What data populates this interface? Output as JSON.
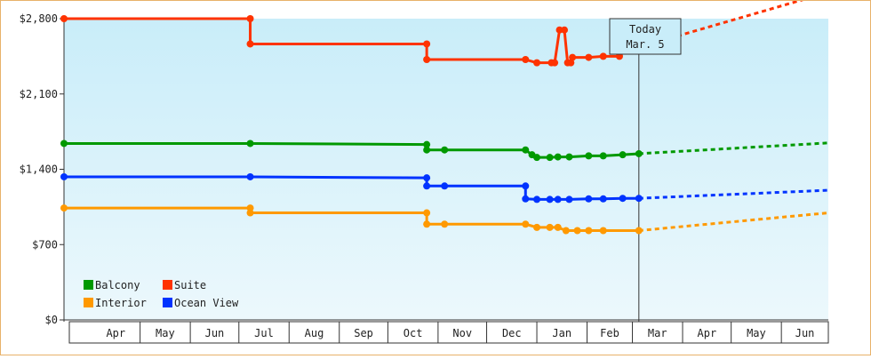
{
  "chart_data": {
    "type": "line",
    "title": "",
    "xlabel": "",
    "ylabel": "",
    "ylim": [
      0,
      2800
    ],
    "y_ticks": [
      {
        "value": 0,
        "label": "$0"
      },
      {
        "value": 700,
        "label": "$700"
      },
      {
        "value": 1400,
        "label": "$1,400"
      },
      {
        "value": 2100,
        "label": "$2,100"
      },
      {
        "value": 2800,
        "label": "$2,800"
      }
    ],
    "x_range": [
      "2014-03-15",
      "2015-06-30"
    ],
    "x_month_labels": [
      {
        "start": "2014-04-01",
        "label": "Apr"
      },
      {
        "start": "2014-05-01",
        "label": "May"
      },
      {
        "start": "2014-06-01",
        "label": "Jun"
      },
      {
        "start": "2014-07-01",
        "label": "Jul"
      },
      {
        "start": "2014-08-01",
        "label": "Aug"
      },
      {
        "start": "2014-09-01",
        "label": "Sep"
      },
      {
        "start": "2014-10-01",
        "label": "Oct"
      },
      {
        "start": "2014-11-01",
        "label": "Nov"
      },
      {
        "start": "2014-12-01",
        "label": "Dec"
      },
      {
        "start": "2015-01-01",
        "label": "Jan"
      },
      {
        "start": "2015-02-01",
        "label": "Feb"
      },
      {
        "start": "2015-03-01",
        "label": "Mar"
      },
      {
        "start": "2015-04-01",
        "label": "Apr"
      },
      {
        "start": "2015-05-01",
        "label": "May"
      },
      {
        "start": "2015-06-01",
        "label": "Jun"
      }
    ],
    "today": {
      "date": "2015-03-05",
      "label_line1": "Today",
      "label_line2": "Mar. 5"
    },
    "legend_placement": "bottom-left",
    "grid": false,
    "background_gradient": [
      "#c9edf9",
      "#ecf8fc"
    ],
    "series": [
      {
        "name": "Suite",
        "color": "#ff3300",
        "points": [
          {
            "x": "2014-03-15",
            "y": 2800
          },
          {
            "x": "2014-07-08",
            "y": 2800
          },
          {
            "x": "2014-07-08",
            "y": 2565
          },
          {
            "x": "2014-10-25",
            "y": 2565
          },
          {
            "x": "2014-10-25",
            "y": 2420
          },
          {
            "x": "2014-12-25",
            "y": 2420
          },
          {
            "x": "2015-01-01",
            "y": 2390
          },
          {
            "x": "2015-01-10",
            "y": 2390
          },
          {
            "x": "2015-01-12",
            "y": 2390
          },
          {
            "x": "2015-01-15",
            "y": 2695
          },
          {
            "x": "2015-01-18",
            "y": 2695
          },
          {
            "x": "2015-01-20",
            "y": 2390
          },
          {
            "x": "2015-01-22",
            "y": 2390
          },
          {
            "x": "2015-01-23",
            "y": 2440
          },
          {
            "x": "2015-02-02",
            "y": 2440
          },
          {
            "x": "2015-02-11",
            "y": 2450
          },
          {
            "x": "2015-02-21",
            "y": 2450
          },
          {
            "x": "2015-02-23",
            "y": 2535
          },
          {
            "x": "2015-03-05",
            "y": 2535
          }
        ],
        "forecast": [
          {
            "x": "2015-03-05",
            "y": 2535
          },
          {
            "x": "2015-06-30",
            "y": 3045
          }
        ]
      },
      {
        "name": "Balcony",
        "color": "#009900",
        "points": [
          {
            "x": "2014-03-15",
            "y": 1640
          },
          {
            "x": "2014-07-08",
            "y": 1640
          },
          {
            "x": "2014-10-25",
            "y": 1630
          },
          {
            "x": "2014-10-25",
            "y": 1580
          },
          {
            "x": "2014-11-05",
            "y": 1580
          },
          {
            "x": "2014-12-25",
            "y": 1580
          },
          {
            "x": "2014-12-29",
            "y": 1535
          },
          {
            "x": "2015-01-01",
            "y": 1510
          },
          {
            "x": "2015-01-09",
            "y": 1510
          },
          {
            "x": "2015-01-14",
            "y": 1515
          },
          {
            "x": "2015-01-21",
            "y": 1515
          },
          {
            "x": "2015-02-02",
            "y": 1525
          },
          {
            "x": "2015-02-11",
            "y": 1525
          },
          {
            "x": "2015-02-23",
            "y": 1535
          },
          {
            "x": "2015-03-05",
            "y": 1545
          }
        ],
        "forecast": [
          {
            "x": "2015-03-05",
            "y": 1545
          },
          {
            "x": "2015-06-30",
            "y": 1645
          }
        ]
      },
      {
        "name": "Ocean View",
        "color": "#0033ff",
        "points": [
          {
            "x": "2014-03-15",
            "y": 1330
          },
          {
            "x": "2014-07-08",
            "y": 1330
          },
          {
            "x": "2014-10-25",
            "y": 1320
          },
          {
            "x": "2014-10-25",
            "y": 1245
          },
          {
            "x": "2014-11-05",
            "y": 1245
          },
          {
            "x": "2014-12-25",
            "y": 1245
          },
          {
            "x": "2014-12-25",
            "y": 1125
          },
          {
            "x": "2015-01-01",
            "y": 1120
          },
          {
            "x": "2015-01-09",
            "y": 1120
          },
          {
            "x": "2015-01-14",
            "y": 1120
          },
          {
            "x": "2015-01-21",
            "y": 1120
          },
          {
            "x": "2015-02-02",
            "y": 1125
          },
          {
            "x": "2015-02-11",
            "y": 1125
          },
          {
            "x": "2015-02-23",
            "y": 1130
          },
          {
            "x": "2015-03-05",
            "y": 1130
          }
        ],
        "forecast": [
          {
            "x": "2015-03-05",
            "y": 1130
          },
          {
            "x": "2015-06-30",
            "y": 1205
          }
        ]
      },
      {
        "name": "Interior",
        "color": "#ff9900",
        "points": [
          {
            "x": "2014-03-15",
            "y": 1040
          },
          {
            "x": "2014-07-08",
            "y": 1040
          },
          {
            "x": "2014-07-08",
            "y": 995
          },
          {
            "x": "2014-10-25",
            "y": 995
          },
          {
            "x": "2014-10-25",
            "y": 890
          },
          {
            "x": "2014-11-05",
            "y": 890
          },
          {
            "x": "2014-12-25",
            "y": 890
          },
          {
            "x": "2015-01-01",
            "y": 860
          },
          {
            "x": "2015-01-09",
            "y": 860
          },
          {
            "x": "2015-01-14",
            "y": 860
          },
          {
            "x": "2015-01-19",
            "y": 830
          },
          {
            "x": "2015-01-26",
            "y": 830
          },
          {
            "x": "2015-02-02",
            "y": 830
          },
          {
            "x": "2015-02-11",
            "y": 830
          },
          {
            "x": "2015-03-05",
            "y": 830
          }
        ],
        "forecast": [
          {
            "x": "2015-03-05",
            "y": 830
          },
          {
            "x": "2015-06-30",
            "y": 995
          }
        ]
      }
    ],
    "legend": [
      {
        "series": "Balcony",
        "color": "#009900"
      },
      {
        "series": "Suite",
        "color": "#ff3300"
      },
      {
        "series": "Interior",
        "color": "#ff9900"
      },
      {
        "series": "Ocean View",
        "color": "#0033ff"
      }
    ]
  }
}
